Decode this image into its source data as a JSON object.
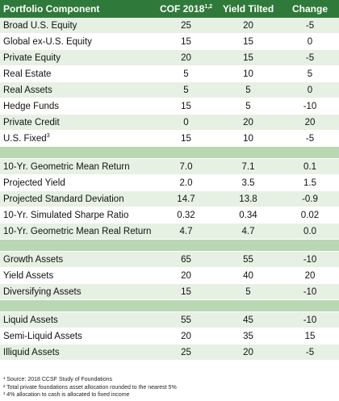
{
  "header": {
    "component": "Portfolio Component",
    "cof": "COF 2018",
    "cof_sup": "1,2",
    "yield": "Yield Tilted",
    "change": "Change"
  },
  "groups": [
    [
      {
        "label": "Broad U.S. Equity",
        "cof": "25",
        "yield": "20",
        "change": "-5"
      },
      {
        "label": "Global ex-U.S. Equity",
        "cof": "15",
        "yield": "15",
        "change": "0"
      },
      {
        "label": "Private Equity",
        "cof": "20",
        "yield": "15",
        "change": "-5"
      },
      {
        "label": "Real Estate",
        "cof": "5",
        "yield": "10",
        "change": "5"
      },
      {
        "label": "Real Assets",
        "cof": "5",
        "yield": "5",
        "change": "0"
      },
      {
        "label": "Hedge Funds",
        "cof": "15",
        "yield": "5",
        "change": "-10"
      },
      {
        "label": "Private Credit",
        "cof": "0",
        "yield": "20",
        "change": "20"
      },
      {
        "label": "U.S. Fixed",
        "sup": "3",
        "cof": "15",
        "yield": "10",
        "change": "-5"
      }
    ],
    [
      {
        "label": "10-Yr. Geometric Mean Return",
        "cof": "7.0",
        "yield": "7.1",
        "change": "0.1"
      },
      {
        "label": "Projected Yield",
        "cof": "2.0",
        "yield": "3.5",
        "change": "1.5"
      },
      {
        "label": "Projected Standard Deviation",
        "cof": "14.7",
        "yield": "13.8",
        "change": "-0.9"
      },
      {
        "label": "10-Yr. Simulated Sharpe Ratio",
        "cof": "0.32",
        "yield": "0.34",
        "change": "0.02"
      },
      {
        "label": "10-Yr. Geometric Mean Real Return",
        "cof": "4.7",
        "yield": "4.7",
        "change": "0.0"
      }
    ],
    [
      {
        "label": "Growth Assets",
        "cof": "65",
        "yield": "55",
        "change": "-10"
      },
      {
        "label": "Yield Assets",
        "cof": "20",
        "yield": "40",
        "change": "20"
      },
      {
        "label": "Diversifying Assets",
        "cof": "15",
        "yield": "5",
        "change": "-10"
      }
    ],
    [
      {
        "label": "Liquid Assets",
        "cof": "55",
        "yield": "45",
        "change": "-10"
      },
      {
        "label": "Semi-Liquid Assets",
        "cof": "20",
        "yield": "35",
        "change": "15"
      },
      {
        "label": "Illiquid Assets",
        "cof": "25",
        "yield": "20",
        "change": "-5"
      }
    ]
  ],
  "footnotes": [
    "¹ Source: 2018 CCSF Study of Foundations",
    "² Total private foundations asset allocation rounded to the nearest 5%",
    "³ 4% allocation to cash is allocated to fixed income"
  ],
  "colors": {
    "header": "#2f7a3a",
    "stripe": "#e6f1e4",
    "separator": "#b9d7b3"
  }
}
